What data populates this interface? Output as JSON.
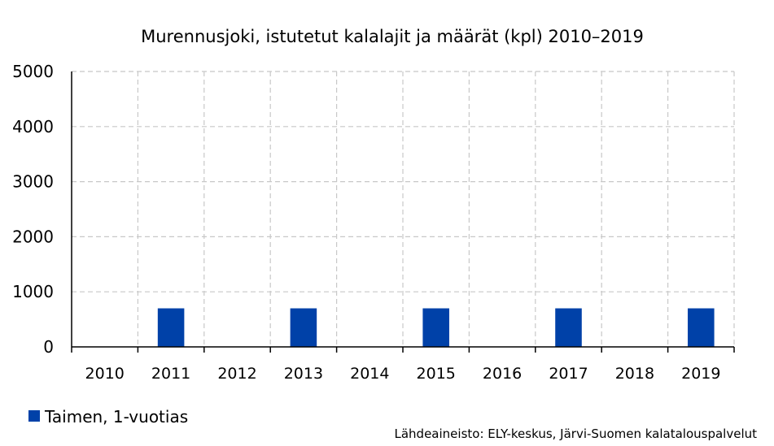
{
  "chart_data": {
    "type": "bar",
    "title": "Murennusjoki, istutetut kalalajit ja määrät (kpl) 2010–2019",
    "categories": [
      "2010",
      "2011",
      "2012",
      "2013",
      "2014",
      "2015",
      "2016",
      "2017",
      "2018",
      "2019"
    ],
    "series": [
      {
        "name": "Taimen, 1-vuotias",
        "values": [
          0,
          700,
          0,
          700,
          0,
          700,
          0,
          700,
          0,
          700
        ],
        "color": "#0041a8"
      }
    ],
    "yticks": [
      "0",
      "1000",
      "2000",
      "3000",
      "4000",
      "5000"
    ],
    "ylim": [
      0,
      5000
    ],
    "xlabel": "",
    "ylabel": "",
    "grid": true,
    "legend": "bottom-left",
    "source": "Lähdeaineisto: ELY-keskus, Järvi-Suomen kalatalouspalvelut"
  }
}
